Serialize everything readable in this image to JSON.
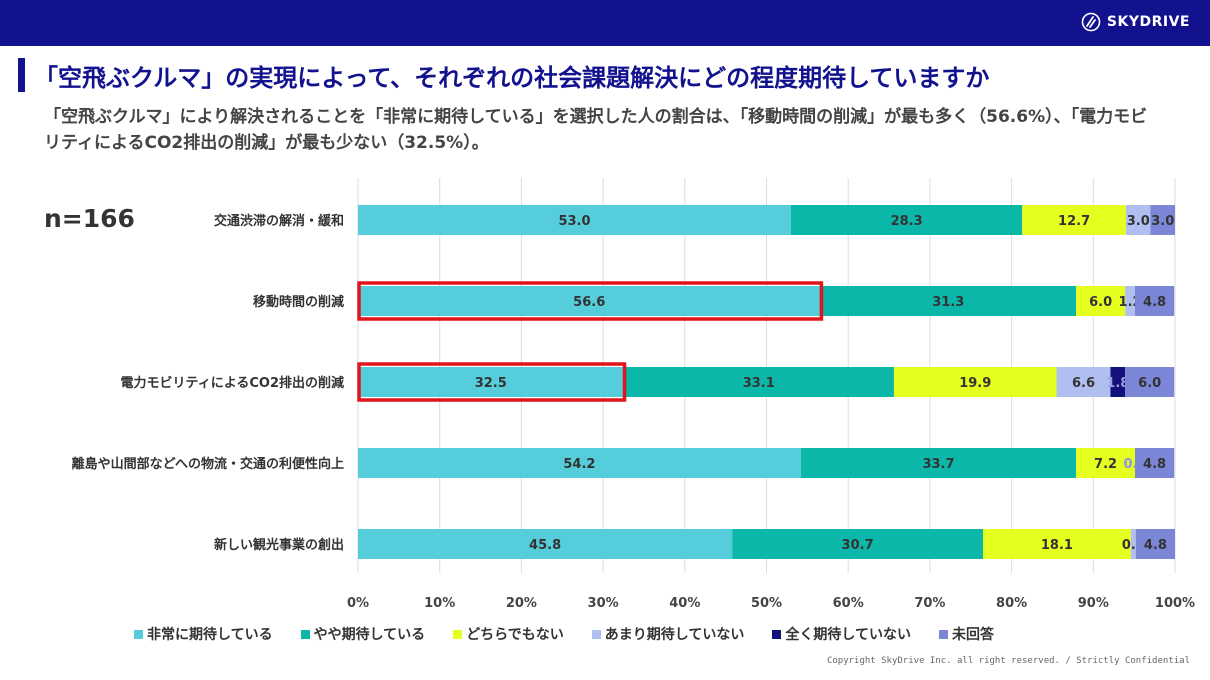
{
  "header": {
    "brand": "SKYDRIVE",
    "logo_icon": "skydrive-logo-icon"
  },
  "title": "「空飛ぶクルマ」の実現によって、それぞれの社会課題解決にどの程度期待していますか",
  "subtitle": "「空飛ぶクルマ」により解決されることを「非常に期待している」を選択した人の割合は、「移動時間の削減」が最も多く（56.6%）、「電力モビリティによるCO2排出の削減」が最も少ない（32.5%）。",
  "sample_size": "n=166",
  "copyright": "Copyright SkyDrive Inc. all right reserved. / Strictly Confidential",
  "chart_data": {
    "type": "bar",
    "orientation": "horizontal",
    "stacked": true,
    "categories": [
      "交通渋滞の解消・緩和",
      "移動時間の削減",
      "電力モビリティによるCO2排出の削減",
      "離島や山間部などへの物流・交通の利便性向上",
      "新しい観光事業の創出"
    ],
    "series": [
      {
        "name": "非常に期待している",
        "color": "#55cddb",
        "values": [
          53.0,
          56.6,
          32.5,
          54.2,
          45.8
        ]
      },
      {
        "name": "やや期待している",
        "color": "#0bb7a9",
        "values": [
          28.3,
          31.3,
          33.1,
          33.7,
          30.7
        ]
      },
      {
        "name": "どちらでもない",
        "color": "#e5ff1f",
        "values": [
          12.7,
          6.0,
          19.9,
          7.2,
          18.1
        ]
      },
      {
        "name": "あまり期待していない",
        "color": "#b0bff0",
        "values": [
          3.0,
          1.2,
          6.6,
          0.0,
          0.6
        ]
      },
      {
        "name": "全く期待していない",
        "color": "#12127a",
        "values": [
          0.0,
          0.0,
          1.8,
          0.0,
          0.0
        ]
      },
      {
        "name": "未回答",
        "color": "#7b86d6",
        "values": [
          3.0,
          4.8,
          6.0,
          4.8,
          4.8
        ]
      }
    ],
    "data_labels": [
      [
        "53.0",
        "28.3",
        "12.7",
        "3.0",
        "",
        "3.0"
      ],
      [
        "56.6",
        "31.3",
        "6.0",
        "1.2",
        "",
        "4.8"
      ],
      [
        "32.5",
        "33.1",
        "19.9",
        "6.6",
        "1.8",
        "6.0"
      ],
      [
        "54.2",
        "33.7",
        "7.2",
        "0.0",
        "0.0",
        "4.8"
      ],
      [
        "45.8",
        "30.7",
        "18.1",
        "0.6",
        "",
        "4.8"
      ]
    ],
    "highlighted": [
      1,
      2
    ],
    "highlight_color": "#e0141c",
    "x_ticks": [
      "0%",
      "10%",
      "20%",
      "30%",
      "40%",
      "50%",
      "60%",
      "70%",
      "80%",
      "90%",
      "100%"
    ],
    "xlim": [
      0,
      100
    ],
    "grid": true,
    "legend_position": "bottom"
  }
}
